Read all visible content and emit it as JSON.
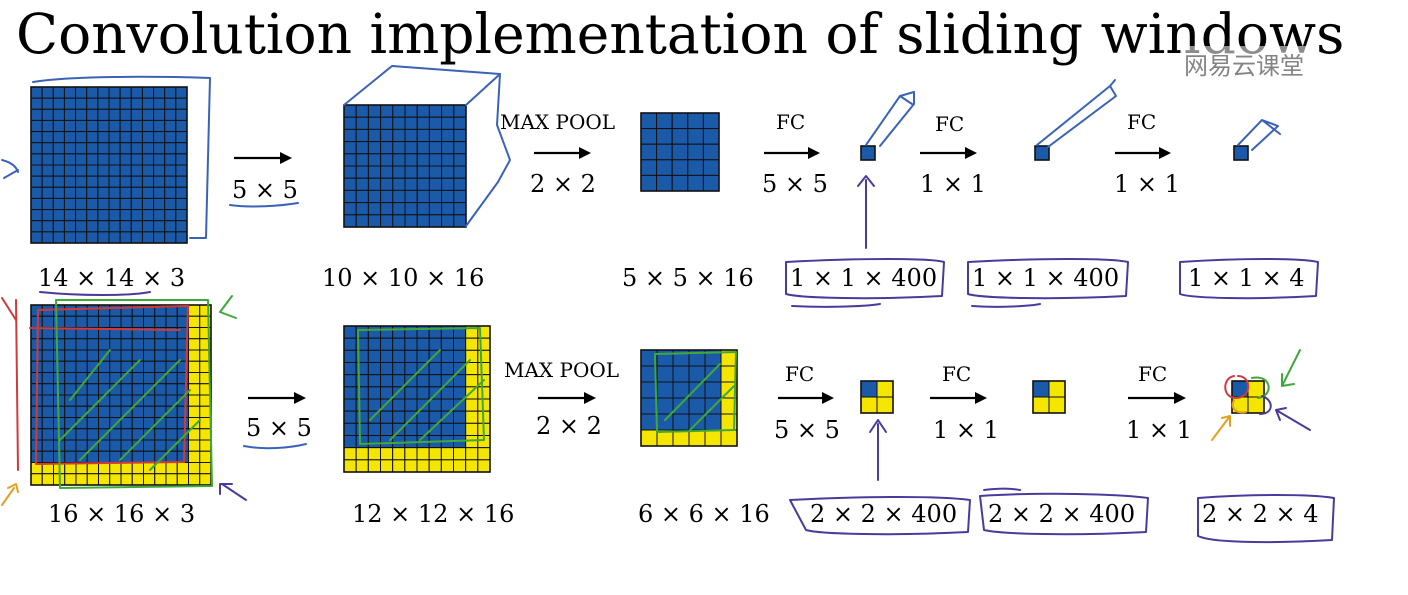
{
  "title": "Convolution implementation of sliding windows",
  "watermark": "网易云课堂",
  "colors": {
    "blue": "#1b5aa8",
    "yellow": "#f5e600",
    "grid": "#111111",
    "ink_blue": "#3a63b8",
    "ink_green": "#3fa83a",
    "ink_purple": "#4b3a9c",
    "ink_red": "#d23a3a",
    "ink_orange": "#e6a020"
  },
  "top_row": {
    "ops": [
      {
        "name": "",
        "size": "5 × 5"
      },
      {
        "name": "MAX POOL",
        "size": "2 × 2"
      },
      {
        "name": "FC",
        "size": "5 × 5"
      },
      {
        "name": "FC",
        "size": "1 × 1"
      },
      {
        "name": "FC",
        "size": "1 × 1"
      }
    ],
    "shapes": [
      "14 × 14  × 3",
      "10 × 10 × 16",
      "5 × 5 × 16",
      "1 × 1 × 400",
      "1 × 1 × 400",
      "1 × 1 × 4"
    ]
  },
  "bottom_row": {
    "ops": [
      {
        "name": "",
        "size": "5 × 5"
      },
      {
        "name": "MAX POOL",
        "size": "2 × 2"
      },
      {
        "name": "FC",
        "size": "5 × 5"
      },
      {
        "name": "FC",
        "size": "1 × 1"
      },
      {
        "name": "FC",
        "size": "1 × 1"
      }
    ],
    "shapes": [
      "16 × 16 × 3",
      "12 × 12 × 16",
      "6 × 6 × 16",
      "2 × 2 × 400",
      "2 × 2 × 400",
      "2 × 2 × 4"
    ]
  }
}
